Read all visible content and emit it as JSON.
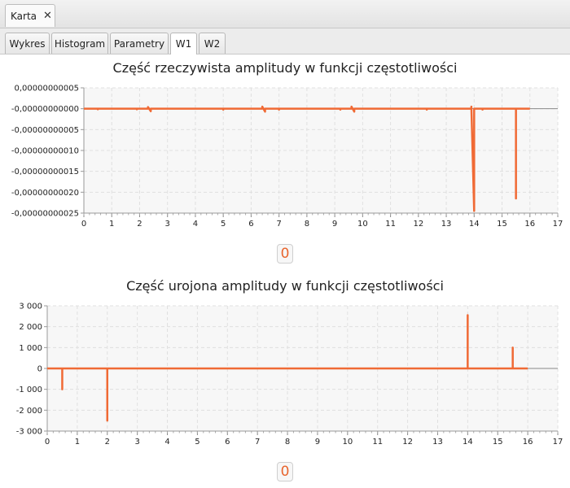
{
  "window_tab": {
    "label": "Karta",
    "close": "✕"
  },
  "tabs": [
    {
      "label": "Wykres",
      "active": false
    },
    {
      "label": "Histogram",
      "active": false
    },
    {
      "label": "Parametry",
      "active": false
    },
    {
      "label": "W1",
      "active": true
    },
    {
      "label": "W2",
      "active": false
    }
  ],
  "charts": {
    "top_badge": "0",
    "bottom_badge": "0"
  },
  "chart_data": [
    {
      "type": "line",
      "title": "Część rzeczywista amplitudy w funkcji częstotliwości",
      "xlabel": "",
      "ylabel": "",
      "xlim": [
        0,
        17
      ],
      "x_ticks": [
        "0",
        "1",
        "2",
        "3",
        "4",
        "5",
        "6",
        "7",
        "8",
        "9",
        "10",
        "11",
        "12",
        "13",
        "14",
        "15",
        "16",
        "17"
      ],
      "y_ticks": [
        "0,00000000005",
        "-0,00000000000",
        "-0,00000000005",
        "-0,00000000010",
        "-0,00000000015",
        "-0,00000000020",
        "-0,00000000025"
      ],
      "ylim": [
        -2.5e-10,
        5e-11
      ],
      "grid": true,
      "color": "#f06a35",
      "series": [
        {
          "x": [
            0,
            0.5,
            0.5,
            0.5,
            1.9,
            1.9,
            1.9,
            2.3,
            2.3,
            2.4,
            2.4,
            2.4,
            5,
            5,
            5,
            6.4,
            6.4,
            6.5,
            6.5,
            6.5,
            7,
            7,
            7,
            9.2,
            9.2,
            9.2,
            9.6,
            9.6,
            9.7,
            9.7,
            9.7,
            12.3,
            12.3,
            12.3,
            13.9,
            13.9,
            14.0,
            14.0,
            14.0,
            14.3,
            14.3,
            14.3,
            15.5,
            15.5,
            15.5,
            16
          ],
          "y": [
            0,
            0,
            -1.5e-12,
            0,
            0,
            -1.5e-12,
            0,
            0,
            4e-12,
            -6e-12,
            0,
            0,
            0,
            -2e-12,
            0,
            0,
            5e-12,
            -7e-12,
            0,
            0,
            0,
            -2e-12,
            0,
            0,
            -2e-12,
            0,
            0,
            5e-12,
            -7e-12,
            0,
            0,
            0,
            -2e-12,
            0,
            0,
            5e-12,
            -2.45e-10,
            -5e-12,
            0,
            0,
            -2e-12,
            0,
            0,
            -2.15e-10,
            0,
            0
          ]
        }
      ]
    },
    {
      "type": "line",
      "title": "Część urojona amplitudy w funkcji częstotliwości",
      "xlabel": "",
      "ylabel": "",
      "xlim": [
        0,
        17
      ],
      "x_ticks": [
        "0",
        "1",
        "2",
        "3",
        "4",
        "5",
        "6",
        "7",
        "8",
        "9",
        "10",
        "11",
        "12",
        "13",
        "14",
        "15",
        "16",
        "17"
      ],
      "y_ticks": [
        "3 000",
        "2 000",
        "1 000",
        "0",
        "-1 000",
        "-2 000",
        "-3 000"
      ],
      "ylim": [
        -3000,
        3000
      ],
      "grid": true,
      "color": "#f06a35",
      "series": [
        {
          "x": [
            0,
            0.5,
            0.5,
            0.5,
            2.0,
            2.0,
            2.0,
            14.0,
            14.0,
            14.0,
            15.5,
            15.5,
            15.5,
            16
          ],
          "y": [
            0,
            0,
            -1000,
            0,
            0,
            -2500,
            0,
            0,
            2550,
            0,
            0,
            1000,
            0,
            0
          ]
        }
      ]
    }
  ]
}
